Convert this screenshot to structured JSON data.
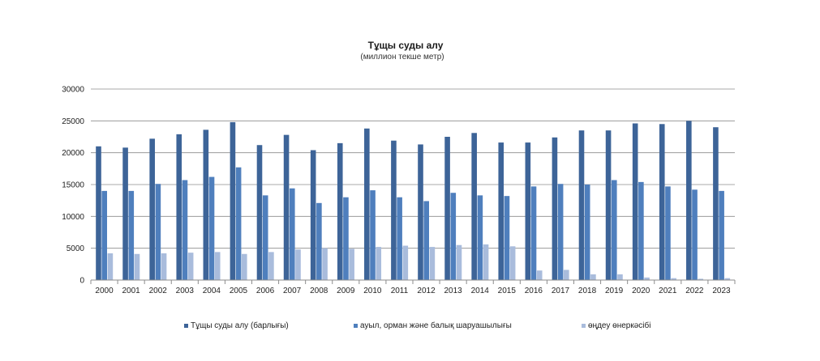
{
  "chart_data": {
    "type": "bar",
    "title": "Тұщы суды алу",
    "subtitle": "(миллион текше метр)",
    "xlabel": "",
    "ylabel": "",
    "ylim": [
      0,
      30000
    ],
    "yticks": [
      0,
      5000,
      10000,
      15000,
      20000,
      25000,
      30000
    ],
    "ytick_labels": [
      "0",
      "5000",
      "10000",
      "15000",
      "20000",
      "25000",
      "30000"
    ],
    "grid": true,
    "legend_position": "bottom",
    "categories": [
      "2000",
      "2001",
      "2002",
      "2003",
      "2004",
      "2005",
      "2006",
      "2007",
      "2008",
      "2009",
      "2010",
      "2011",
      "2012",
      "2013",
      "2014",
      "2015",
      "2016",
      "2017",
      "2018",
      "2019",
      "2020",
      "2021",
      "2022",
      "2023"
    ],
    "series": [
      {
        "name": "Тұщы суды алу (барлығы)",
        "color": "#3d6498",
        "values": [
          21000,
          20800,
          22200,
          22900,
          23600,
          24800,
          21200,
          22800,
          20400,
          21500,
          23800,
          21900,
          21300,
          22500,
          23100,
          21600,
          21600,
          22400,
          23500,
          23500,
          24600,
          24500,
          25000,
          24000
        ]
      },
      {
        "name": "ауыл, орман және балық шаруашылығы",
        "color": "#4f7fbd",
        "values": [
          14000,
          14000,
          15100,
          15700,
          16200,
          17700,
          13300,
          14400,
          12100,
          13000,
          14100,
          13000,
          12400,
          13700,
          13300,
          13200,
          14700,
          15100,
          15000,
          15700,
          15400,
          14700,
          14200,
          14000
        ]
      },
      {
        "name": "өңдеу өнеркәсібі",
        "color": "#a9bcdc",
        "values": [
          4200,
          4100,
          4200,
          4300,
          4400,
          4100,
          4400,
          4800,
          5000,
          4900,
          5200,
          5400,
          5200,
          5500,
          5600,
          5300,
          1500,
          1600,
          900,
          900,
          400,
          300,
          200,
          300
        ]
      }
    ]
  }
}
